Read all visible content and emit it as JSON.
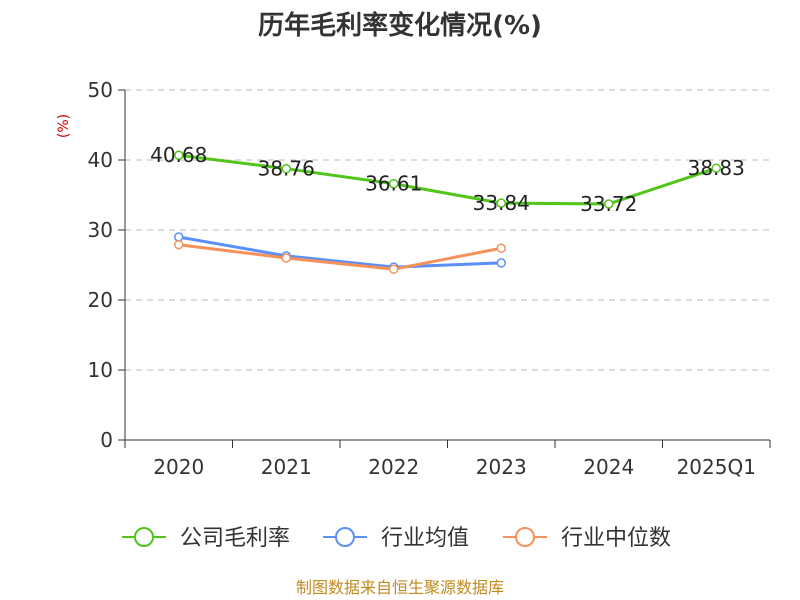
{
  "chart_data": {
    "type": "line",
    "title": "历年毛利率变化情况(%)",
    "ylabel": "(%)",
    "xlabel": "",
    "categories": [
      "2020",
      "2021",
      "2022",
      "2023",
      "2024",
      "2025Q1"
    ],
    "ylim": [
      0,
      50
    ],
    "yticks": [
      "0",
      "10",
      "20",
      "30",
      "40",
      "50"
    ],
    "grid": true,
    "legend_position": "bottom",
    "series": [
      {
        "name": "公司毛利率",
        "color": "#52c41a",
        "values": [
          40.68,
          38.76,
          36.61,
          33.84,
          33.72,
          38.83
        ],
        "labels": [
          "40.68",
          "38.76",
          "36.61",
          "33.84",
          "33.72",
          "38.83"
        ]
      },
      {
        "name": "行业均值",
        "color": "#5b8ff9",
        "values": [
          29.0,
          26.3,
          24.7,
          25.3,
          null,
          null
        ]
      },
      {
        "name": "行业中位数",
        "color": "#f6915a",
        "values": [
          27.9,
          26.0,
          24.4,
          27.4,
          null,
          null
        ]
      }
    ]
  },
  "footer": {
    "source": "制图数据来自恒生聚源数据库"
  }
}
